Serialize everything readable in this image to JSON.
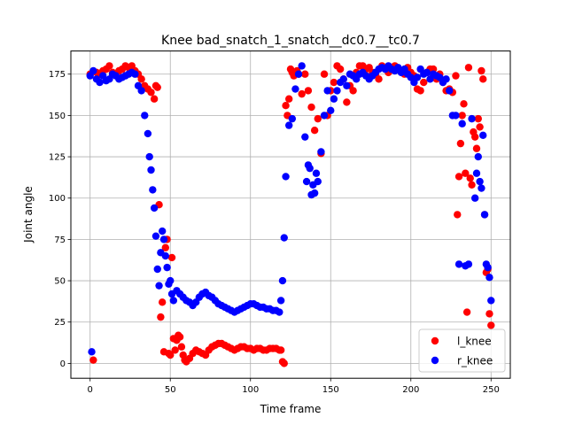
{
  "chart_data": {
    "type": "scatter",
    "title": "Knee bad_snatch_1_snatch__dc0.7__tc0.7",
    "xlabel": "Time frame",
    "ylabel": "Joint angle",
    "xlim": [
      -12,
      262
    ],
    "ylim": [
      -9,
      189
    ],
    "xticks": [
      0,
      50,
      100,
      150,
      200,
      250
    ],
    "yticks": [
      0,
      25,
      50,
      75,
      100,
      125,
      150,
      175
    ],
    "grid": true,
    "legend_position": "bottom-right",
    "series": [
      {
        "name": "l_knee",
        "color": "#ff0000",
        "x": [
          0,
          2,
          4,
          6,
          8,
          10,
          12,
          14,
          16,
          18,
          20,
          22,
          24,
          26,
          28,
          30,
          32,
          34,
          36,
          38,
          40,
          41,
          42,
          43,
          44,
          45,
          46,
          47,
          48,
          49,
          50,
          51,
          52,
          53,
          54,
          55,
          56,
          57,
          58,
          59,
          60,
          62,
          64,
          66,
          68,
          70,
          72,
          74,
          76,
          78,
          80,
          82,
          84,
          86,
          88,
          90,
          92,
          94,
          96,
          98,
          100,
          102,
          104,
          106,
          108,
          110,
          112,
          114,
          116,
          118,
          119,
          120,
          121,
          122,
          123,
          124,
          125,
          126,
          127,
          128,
          129,
          130,
          132,
          134,
          136,
          138,
          140,
          142,
          144,
          146,
          148,
          150,
          152,
          154,
          156,
          158,
          160,
          162,
          164,
          166,
          168,
          170,
          172,
          174,
          176,
          178,
          180,
          182,
          184,
          186,
          188,
          190,
          192,
          194,
          196,
          198,
          200,
          202,
          204,
          206,
          208,
          210,
          212,
          214,
          216,
          218,
          220,
          222,
          224,
          226,
          228,
          229,
          230,
          231,
          232,
          233,
          234,
          235,
          236,
          237,
          238,
          239,
          240,
          241,
          242,
          243,
          244,
          245,
          246,
          247,
          248,
          249,
          250
        ],
        "y": [
          175,
          2,
          176,
          175,
          177,
          178,
          180,
          176,
          175,
          177,
          178,
          180,
          179,
          180,
          177,
          175,
          172,
          168,
          166,
          164,
          160,
          168,
          167,
          96,
          28,
          37,
          7,
          70,
          75,
          6,
          5,
          64,
          15,
          8,
          14,
          17,
          16,
          10,
          5,
          2,
          1,
          3,
          6,
          8,
          7,
          6,
          5,
          8,
          10,
          11,
          12,
          12,
          11,
          10,
          9,
          8,
          9,
          10,
          10,
          9,
          9,
          8,
          9,
          9,
          8,
          8,
          9,
          9,
          9,
          8,
          8,
          1,
          0,
          156,
          150,
          160,
          178,
          176,
          174,
          176,
          177,
          175,
          163,
          175,
          165,
          155,
          141,
          148,
          127,
          175,
          150,
          165,
          170,
          180,
          178,
          172,
          158,
          168,
          165,
          176,
          180,
          180,
          178,
          179,
          176,
          175,
          172,
          180,
          178,
          176,
          179,
          180,
          178,
          177,
          175,
          179,
          176,
          174,
          166,
          165,
          170,
          176,
          178,
          178,
          172,
          175,
          170,
          165,
          166,
          164,
          174,
          90,
          113,
          133,
          150,
          157,
          115,
          31,
          179,
          112,
          108,
          140,
          137,
          130,
          148,
          143,
          177,
          172,
          90,
          55,
          57,
          30,
          23
        ]
      },
      {
        "name": "r_knee",
        "color": "#0000ff",
        "x": [
          0,
          1,
          2,
          4,
          6,
          8,
          10,
          12,
          14,
          16,
          18,
          20,
          22,
          24,
          26,
          28,
          30,
          32,
          34,
          36,
          37,
          38,
          39,
          40,
          41,
          42,
          43,
          44,
          45,
          46,
          47,
          48,
          49,
          50,
          51,
          52,
          54,
          56,
          58,
          60,
          62,
          64,
          66,
          68,
          70,
          72,
          74,
          76,
          78,
          80,
          82,
          84,
          86,
          88,
          90,
          92,
          94,
          96,
          98,
          100,
          102,
          104,
          106,
          108,
          110,
          112,
          114,
          116,
          118,
          119,
          120,
          121,
          122,
          124,
          126,
          128,
          130,
          132,
          134,
          135,
          136,
          137,
          138,
          139,
          140,
          141,
          142,
          144,
          146,
          148,
          150,
          152,
          154,
          156,
          158,
          160,
          162,
          164,
          166,
          168,
          170,
          172,
          174,
          176,
          178,
          180,
          182,
          184,
          186,
          188,
          190,
          192,
          194,
          196,
          198,
          200,
          202,
          204,
          206,
          208,
          210,
          212,
          214,
          216,
          218,
          220,
          222,
          224,
          226,
          228,
          230,
          232,
          234,
          236,
          238,
          240,
          241,
          242,
          243,
          244,
          245,
          246,
          247,
          248,
          249,
          250
        ],
        "y": [
          174,
          7,
          177,
          172,
          170,
          174,
          171,
          172,
          175,
          174,
          172,
          173,
          174,
          175,
          176,
          175,
          168,
          165,
          150,
          139,
          125,
          117,
          105,
          94,
          77,
          57,
          47,
          67,
          80,
          75,
          65,
          58,
          48,
          50,
          42,
          38,
          44,
          42,
          40,
          38,
          37,
          35,
          37,
          40,
          42,
          43,
          41,
          40,
          38,
          36,
          35,
          34,
          33,
          32,
          31,
          32,
          33,
          34,
          35,
          36,
          36,
          35,
          34,
          34,
          33,
          33,
          32,
          32,
          31,
          38,
          50,
          76,
          113,
          144,
          148,
          166,
          175,
          180,
          137,
          110,
          120,
          118,
          102,
          108,
          103,
          115,
          110,
          128,
          150,
          165,
          153,
          160,
          165,
          170,
          172,
          168,
          175,
          174,
          172,
          175,
          176,
          174,
          172,
          174,
          176,
          178,
          179,
          178,
          180,
          178,
          177,
          179,
          176,
          178,
          175,
          173,
          170,
          173,
          178,
          175,
          176,
          172,
          175,
          174,
          173,
          170,
          172,
          165,
          150,
          150,
          60,
          145,
          59,
          60,
          148,
          100,
          115,
          125,
          110,
          106,
          138,
          90,
          60,
          58,
          52,
          38
        ]
      }
    ]
  }
}
